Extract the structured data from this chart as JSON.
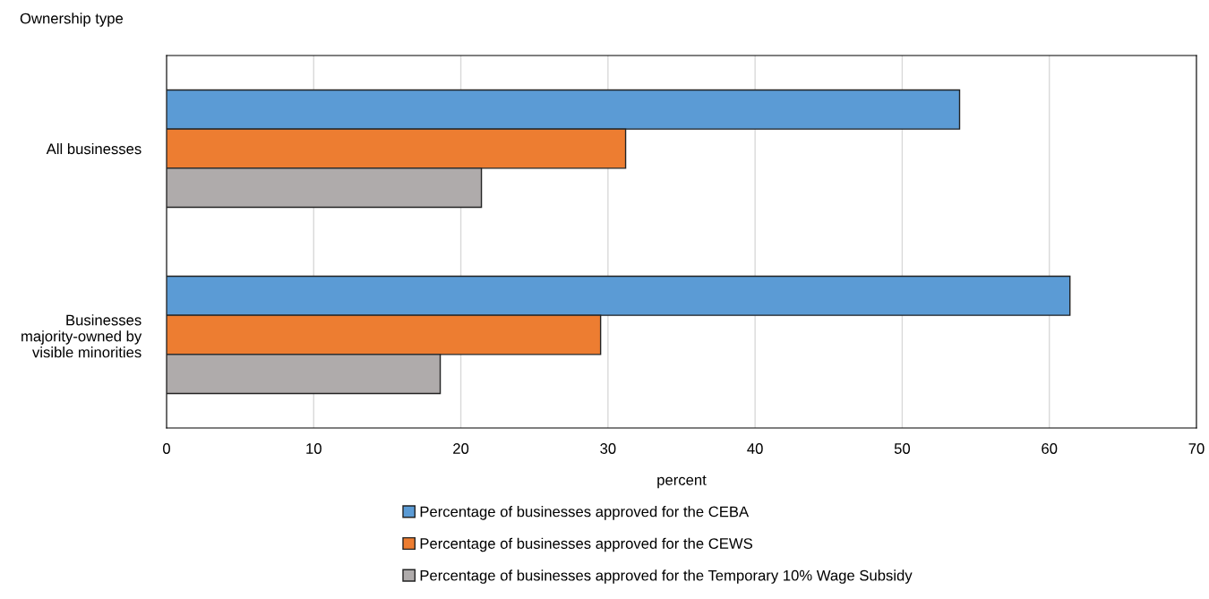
{
  "chart_data": {
    "type": "bar",
    "orientation": "horizontal",
    "ylabel": "Ownership type",
    "xlabel": "percent",
    "categories": [
      "All businesses",
      "Businesses\nmajority-owned by\nvisible minorities"
    ],
    "series": [
      {
        "name": "Percentage of businesses approved for the CEBA",
        "color": "#5b9bd5",
        "values": [
          53.9,
          61.4
        ]
      },
      {
        "name": "Percentage of businesses approved for the CEWS",
        "color": "#ed7d31",
        "values": [
          31.2,
          29.5
        ]
      },
      {
        "name": "Percentage of businesses approved for the Temporary 10% Wage Subsidy",
        "color": "#afabab",
        "values": [
          21.4,
          18.6
        ]
      }
    ],
    "xlim": [
      0,
      70
    ],
    "xticks": [
      0,
      10,
      20,
      30,
      40,
      50,
      60,
      70
    ],
    "grid": "x",
    "legend": "bottom"
  }
}
